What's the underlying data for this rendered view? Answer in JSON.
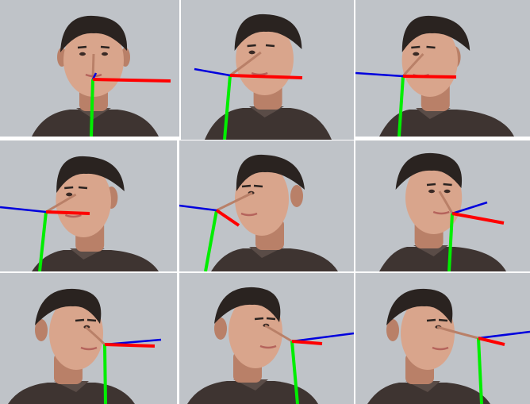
{
  "grid": {
    "rows": 3,
    "cols": 3
  },
  "axis_colors": {
    "x_axis": "#ff0000",
    "y_axis": "#00ee00",
    "z_axis": "#0000dd"
  },
  "palette": {
    "background": "#c7cbd1",
    "hair": "#2a2320",
    "skin": "#d9a58c",
    "skin_shadow": "#b98068",
    "shirt": "#3e3431",
    "lips": "#b5645c"
  },
  "tiles": [
    {
      "pose": "frontal"
    },
    {
      "pose": "slight-right-turn"
    },
    {
      "pose": "right-turn"
    },
    {
      "pose": "strong-right-turn"
    },
    {
      "pose": "right-profile"
    },
    {
      "pose": "left-turn"
    },
    {
      "pose": "left-profile"
    },
    {
      "pose": "left-profile-tilted"
    },
    {
      "pose": "left-profile-up"
    }
  ]
}
